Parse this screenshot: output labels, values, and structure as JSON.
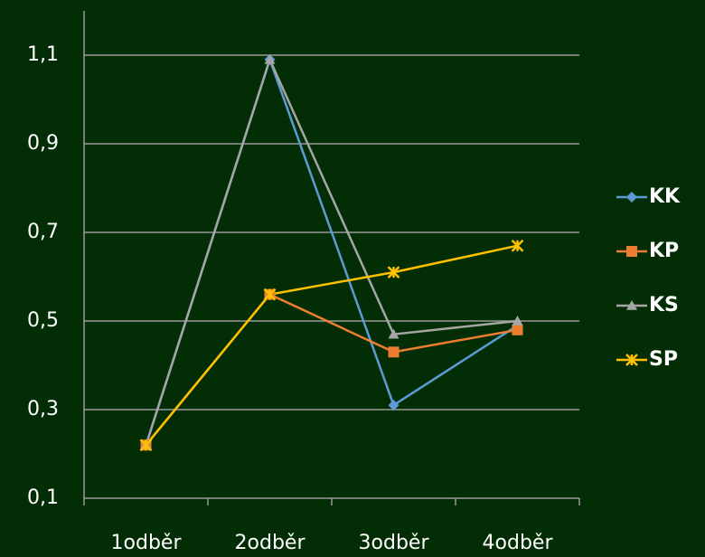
{
  "chart_data": {
    "type": "line",
    "categories": [
      "1odběr",
      "2odběr",
      "3odběr",
      "4odběr"
    ],
    "series": [
      {
        "name": "KK",
        "color": "#5b9bd5",
        "marker": "diamond",
        "values": [
          0.22,
          1.09,
          0.31,
          0.49
        ]
      },
      {
        "name": "KP",
        "color": "#ed7d31",
        "marker": "square",
        "values": [
          0.22,
          0.56,
          0.43,
          0.48
        ]
      },
      {
        "name": "KS",
        "color": "#a5a5a5",
        "marker": "triangle",
        "values": [
          0.22,
          1.09,
          0.47,
          0.5
        ]
      },
      {
        "name": "SP",
        "color": "#ffc000",
        "marker": "x",
        "values": [
          0.22,
          0.56,
          0.61,
          0.67
        ]
      }
    ],
    "ylim": [
      0.1,
      1.2
    ],
    "yticks": [
      {
        "value": 0.1,
        "label": "0,1"
      },
      {
        "value": 0.3,
        "label": "0,3"
      },
      {
        "value": 0.5,
        "label": "0,5"
      },
      {
        "value": 0.7,
        "label": "0,7"
      },
      {
        "value": 0.9,
        "label": "0,9"
      },
      {
        "value": 1.1,
        "label": "1,1"
      }
    ],
    "grid": true,
    "legend": "right"
  }
}
